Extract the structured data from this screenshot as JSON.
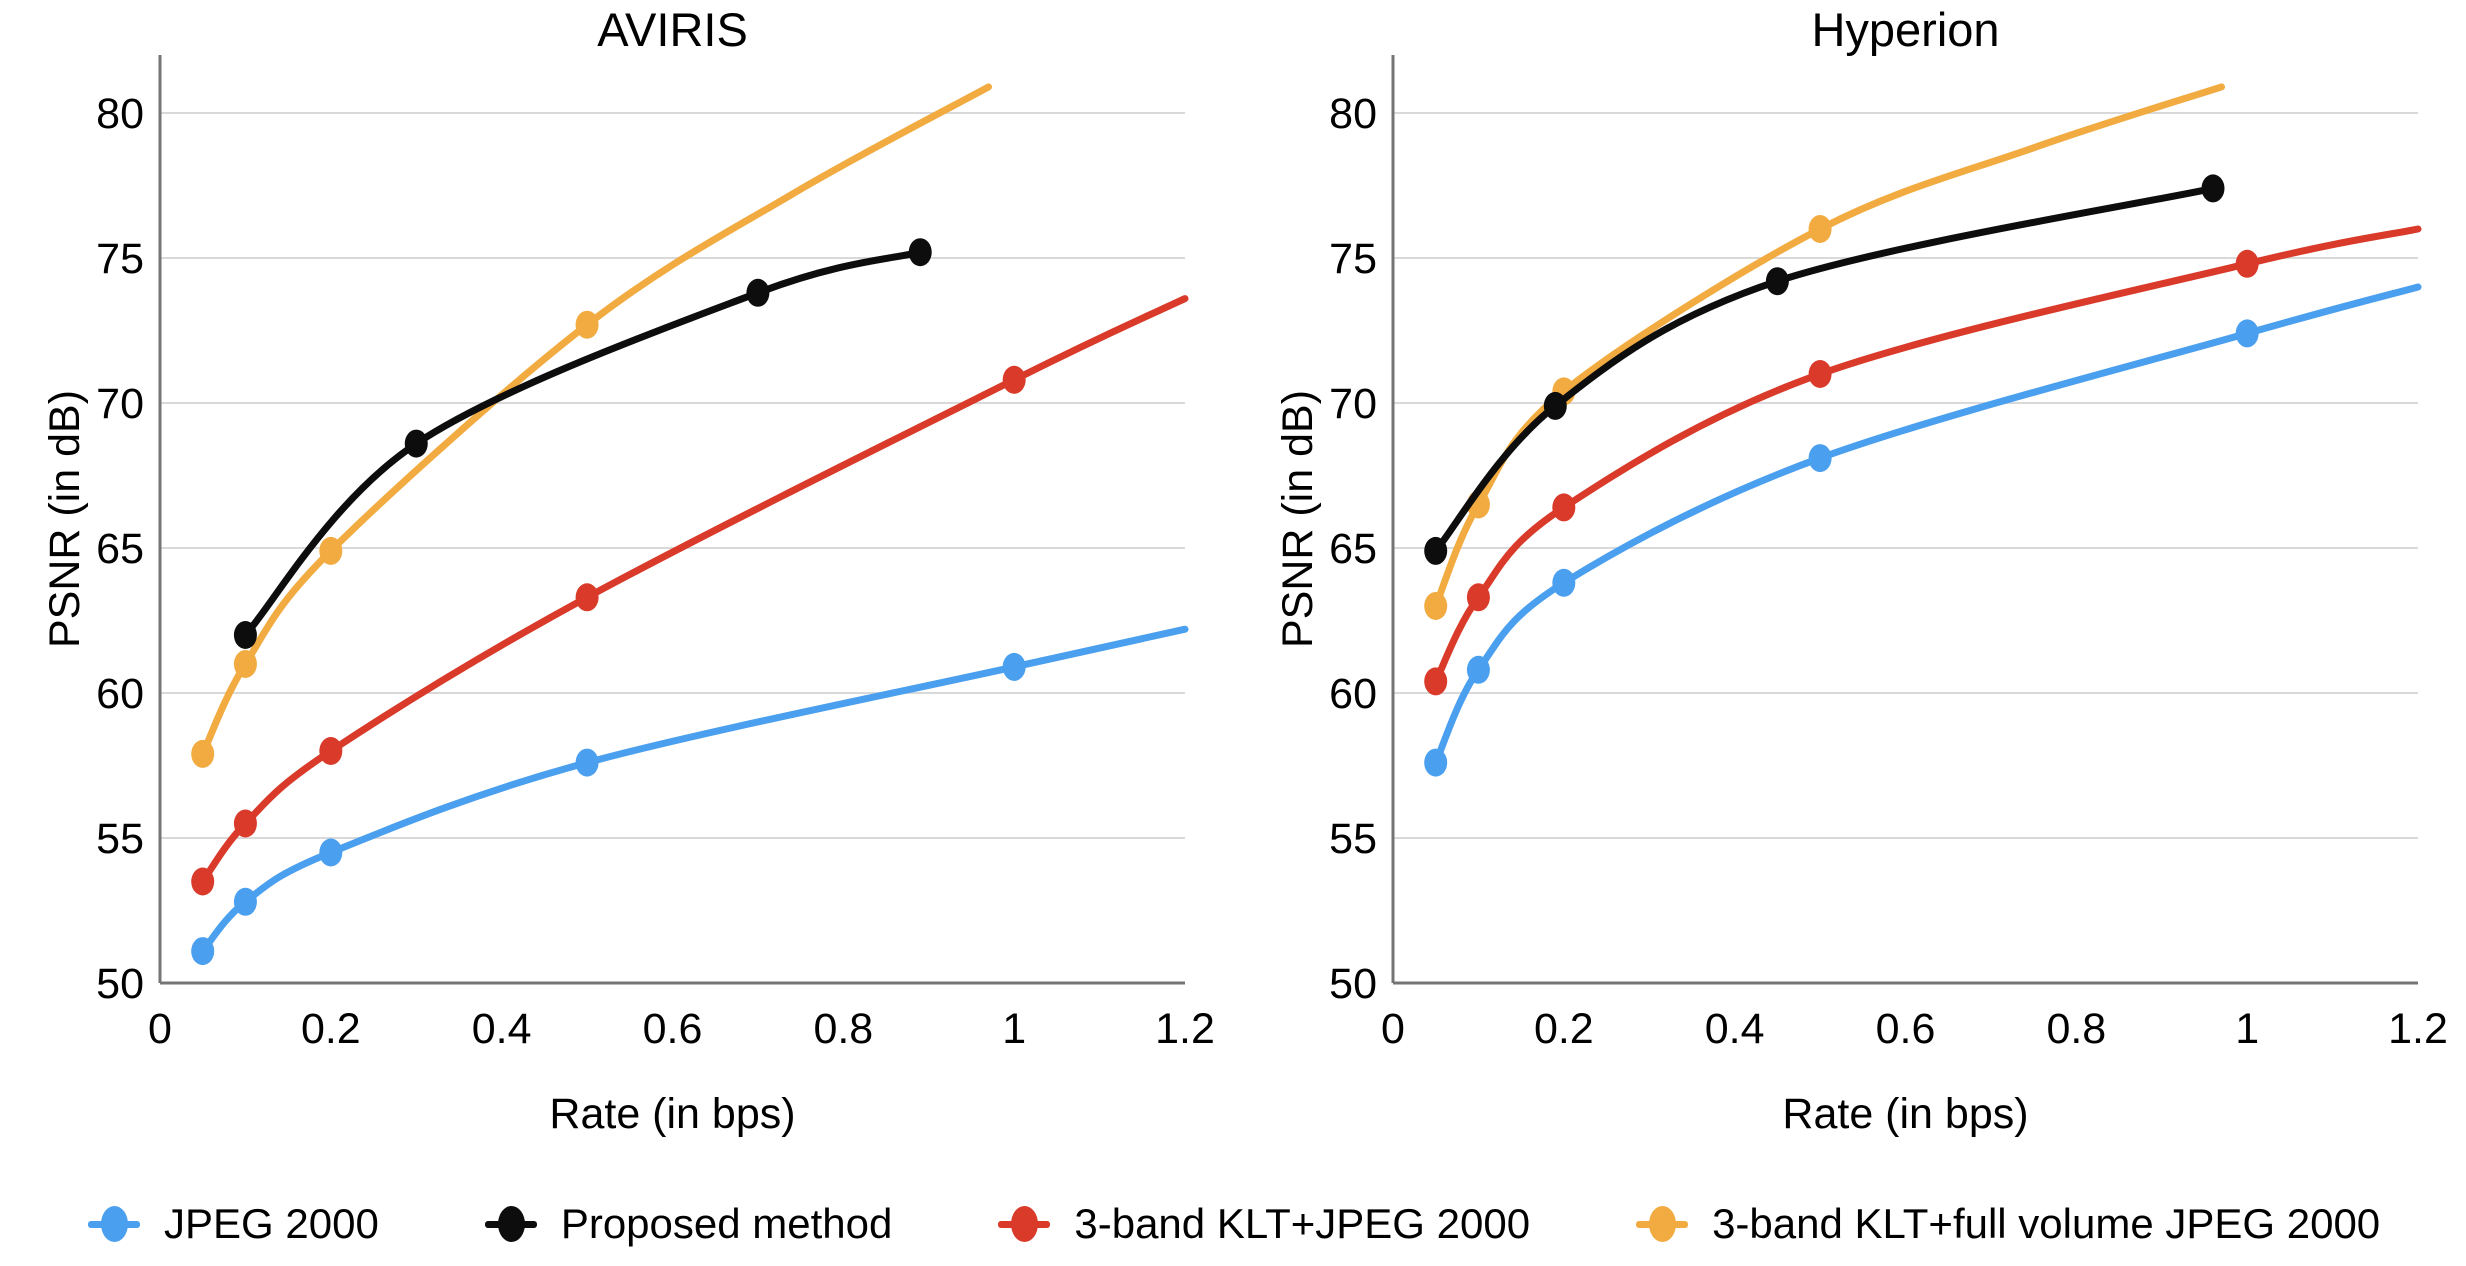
{
  "figure": {
    "background": "#ffffff"
  },
  "colors": {
    "grid": "#d9d9d9",
    "axis": "#757575",
    "text": "#000000",
    "blue": "#4a9fee",
    "black": "#0d0d0d",
    "red": "#d93a29",
    "orange": "#f1ab40"
  },
  "axes": {
    "x_tick_labels": [
      "0",
      "0.2",
      "0.4",
      "0.6",
      "0.8",
      "1",
      "1.2"
    ],
    "x_tick_values": [
      0,
      0.2,
      0.4,
      0.6,
      0.8,
      1,
      1.2
    ],
    "y_tick_labels": [
      "50",
      "55",
      "60",
      "65",
      "70",
      "75",
      "80"
    ],
    "y_tick_values": [
      50,
      55,
      60,
      65,
      70,
      75,
      80
    ]
  },
  "legend": [
    {
      "label": "JPEG 2000",
      "color": "#4a9fee"
    },
    {
      "label": "Proposed method",
      "color": "#0d0d0d"
    },
    {
      "label": "3-band KLT+JPEG 2000",
      "color": "#d93a29"
    },
    {
      "label": "3-band KLT+full volume JPEG 2000",
      "color": "#f1ab40"
    }
  ],
  "chart_data": [
    {
      "type": "line",
      "title": "AVIRIS",
      "xlabel": "Rate (in bps)",
      "ylabel": "PSNR (in dB)",
      "xlim": [
        0,
        1.2
      ],
      "ylim": [
        50,
        82
      ],
      "grid": true,
      "series": [
        {
          "name": "JPEG 2000",
          "color": "#4a9fee",
          "x": [
            0.05,
            0.1,
            0.2,
            0.5,
            1.0
          ],
          "y": [
            51.1,
            52.8,
            54.5,
            57.6,
            60.9
          ],
          "tail": [
            [
              1.2,
              62.2
            ]
          ]
        },
        {
          "name": "3-band KLT+JPEG 2000",
          "color": "#d93a29",
          "x": [
            0.05,
            0.1,
            0.2,
            0.5,
            1.0
          ],
          "y": [
            53.5,
            55.5,
            58.0,
            63.3,
            70.8
          ],
          "tail": [
            [
              1.2,
              73.6
            ]
          ]
        },
        {
          "name": "3-band KLT+full volume JPEG 2000",
          "color": "#f1ab40",
          "x": [
            0.05,
            0.1,
            0.2,
            0.5
          ],
          "y": [
            57.9,
            61.0,
            64.9,
            72.7
          ],
          "tail": [
            [
              0.74,
              77.2
            ],
            [
              0.97,
              80.9
            ]
          ]
        },
        {
          "name": "Proposed method",
          "color": "#0d0d0d",
          "x": [
            0.1,
            0.3,
            0.7,
            0.89
          ],
          "y": [
            62.0,
            68.6,
            73.8,
            75.2
          ],
          "tail": []
        }
      ]
    },
    {
      "type": "line",
      "title": "Hyperion",
      "xlabel": "Rate (in bps)",
      "ylabel": "PSNR (in dB)",
      "xlim": [
        0,
        1.2
      ],
      "ylim": [
        50,
        82
      ],
      "grid": true,
      "series": [
        {
          "name": "JPEG 2000",
          "color": "#4a9fee",
          "x": [
            0.05,
            0.1,
            0.2,
            0.5,
            1.0
          ],
          "y": [
            57.6,
            60.8,
            63.8,
            68.1,
            72.4
          ],
          "tail": [
            [
              1.2,
              74.0
            ]
          ]
        },
        {
          "name": "3-band KLT+JPEG 2000",
          "color": "#d93a29",
          "x": [
            0.05,
            0.1,
            0.2,
            0.5,
            1.0
          ],
          "y": [
            60.4,
            63.3,
            66.4,
            71.0,
            74.8
          ],
          "tail": [
            [
              1.2,
              76.0
            ]
          ]
        },
        {
          "name": "3-band KLT+full volume JPEG 2000",
          "color": "#f1ab40",
          "x": [
            0.05,
            0.1,
            0.2,
            0.5
          ],
          "y": [
            63.0,
            66.5,
            70.4,
            76.0
          ],
          "tail": [
            [
              0.75,
              78.8
            ],
            [
              0.97,
              80.9
            ]
          ]
        },
        {
          "name": "Proposed method",
          "color": "#0d0d0d",
          "x": [
            0.05,
            0.19,
            0.45,
            0.96
          ],
          "y": [
            64.9,
            69.9,
            74.2,
            77.4
          ],
          "tail": []
        }
      ]
    }
  ]
}
